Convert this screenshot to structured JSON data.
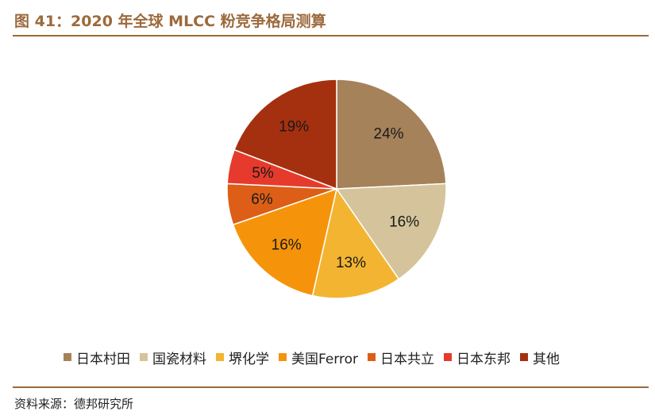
{
  "header": {
    "title": "图 41：2020 年全球 MLCC 粉竞争格局测算"
  },
  "chart_data": {
    "type": "pie",
    "title": "",
    "slices": [
      {
        "label": "日本村田",
        "value": 24,
        "display": "24%",
        "color": "#a6825a"
      },
      {
        "label": "国瓷材料",
        "value": 16,
        "display": "16%",
        "color": "#d5c49b"
      },
      {
        "label": "堺化学",
        "value": 13,
        "display": "13%",
        "color": "#f3b531"
      },
      {
        "label": "美国Ferror",
        "value": 16,
        "display": "16%",
        "color": "#f5940a"
      },
      {
        "label": "日本共立",
        "value": 6,
        "display": "6%",
        "color": "#dd5e16"
      },
      {
        "label": "日本东邦",
        "value": 5,
        "display": "5%",
        "color": "#e63b2c"
      },
      {
        "label": "其他",
        "value": 19,
        "display": "19%",
        "color": "#a5300f"
      }
    ],
    "legend_position": "bottom"
  },
  "footer": {
    "source": "资料来源：德邦研究所"
  }
}
